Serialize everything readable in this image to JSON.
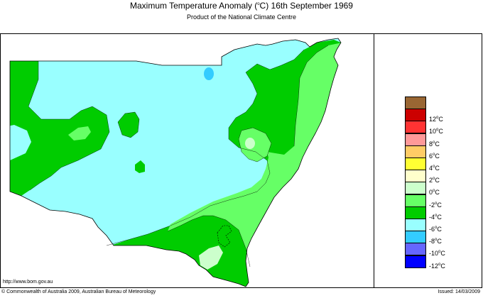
{
  "header": {
    "title_main": "Maximum Temperature Anomaly (",
    "title_deg": "o",
    "title_rest": "C)  16th September 1969",
    "subtitle": "Product of the National Climate Centre"
  },
  "footer": {
    "url": "http://www.bom.gov.au",
    "copyright": "© Commonwealth of Australia 2009, Australian Bureau of Meteorology",
    "issued": "Issued: 14/03/2009"
  },
  "legend": {
    "unit_deg": "o",
    "unit_c": "C",
    "entries": [
      {
        "color": "#996633",
        "label": ""
      },
      {
        "color": "#cc0000",
        "label": "12"
      },
      {
        "color": "#ff3333",
        "label": "10"
      },
      {
        "color": "#ff9999",
        "label": "8"
      },
      {
        "color": "#ffcc66",
        "label": "6"
      },
      {
        "color": "#ffff33",
        "label": "4"
      },
      {
        "color": "#ffffcc",
        "label": "2"
      },
      {
        "color": "#ccffcc",
        "label": "0"
      },
      {
        "color": "#66ff66",
        "label": "-2"
      },
      {
        "color": "#00cc00",
        "label": "-4"
      },
      {
        "color": "#99ffff",
        "label": "-6"
      },
      {
        "color": "#33ccff",
        "label": "-8"
      },
      {
        "color": "#6666ff",
        "label": "-10"
      },
      {
        "color": "#0000ff",
        "label": "-12"
      }
    ]
  },
  "map_colors": {
    "light_cyan": "#99ffff",
    "dark_green": "#00cc00",
    "mid_green": "#66ff66",
    "pale_green": "#ccffcc",
    "blue": "#33ccff"
  }
}
